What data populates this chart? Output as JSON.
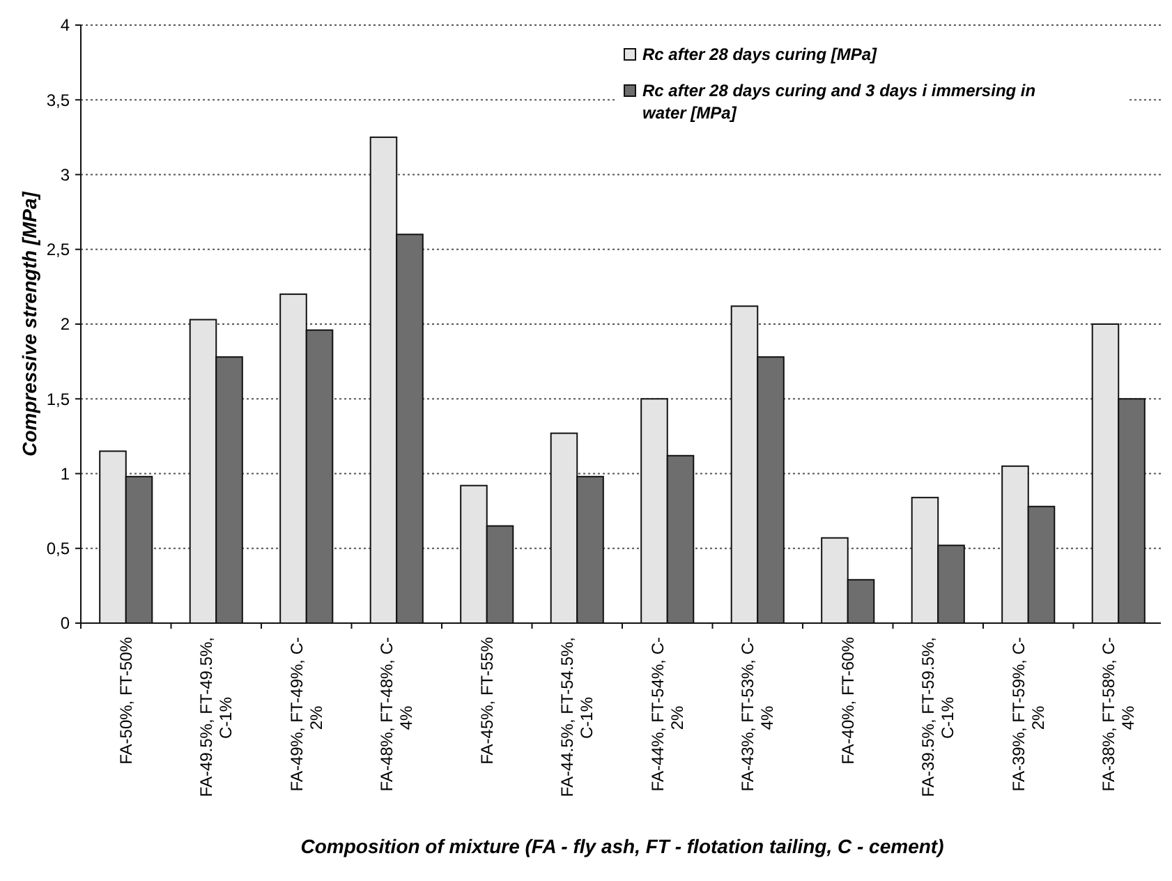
{
  "chart_data": {
    "type": "bar",
    "xlabel": "Composition of mixture (FA - fly ash, FT - flotation tailing, C - cement)",
    "ylabel": "Compressive strength [MPa]",
    "categories": [
      "FA-50%, FT-50%",
      "FA-49.5%, FT-49.5%, C-1%",
      "FA-49%, FT-49%, C-2%",
      "FA-48%, FT-48%, C-4%",
      "FA-45%, FT-55%",
      "FA-44.5%, FT-54.5%, C-1%",
      "FA-44%, FT-54%, C-2%",
      "FA-43%, FT-53%, C-4%",
      "FA-40%, FT-60%",
      "FA-39.5%, FT-59.5%, C-1%",
      "FA-39%, FT-59%, C-2%",
      "FA-38%, FT-58%, C-4%"
    ],
    "series": [
      {
        "name": "Rc after 28 days curing [MPa]",
        "color": "#e4e4e4",
        "values": [
          1.15,
          2.03,
          2.2,
          3.25,
          0.92,
          1.27,
          1.5,
          2.12,
          0.57,
          0.84,
          1.05,
          2.0
        ]
      },
      {
        "name": "Rc after 28 days curing and 3 days i immersing in water [MPa]",
        "color": "#6e6e6e",
        "values": [
          0.98,
          1.78,
          1.96,
          2.6,
          0.65,
          0.98,
          1.12,
          1.78,
          0.29,
          0.52,
          0.78,
          1.5
        ]
      }
    ],
    "ylim": [
      0,
      4
    ],
    "yticks": [
      0,
      {
        "value": 0.5,
        "label": "0,5"
      },
      1,
      {
        "value": 1.5,
        "label": "1,5"
      },
      2,
      {
        "value": 2.5,
        "label": "2,5"
      },
      3,
      {
        "value": 3.5,
        "label": "3,5"
      },
      4
    ],
    "grid": "y",
    "legend": "top right"
  }
}
